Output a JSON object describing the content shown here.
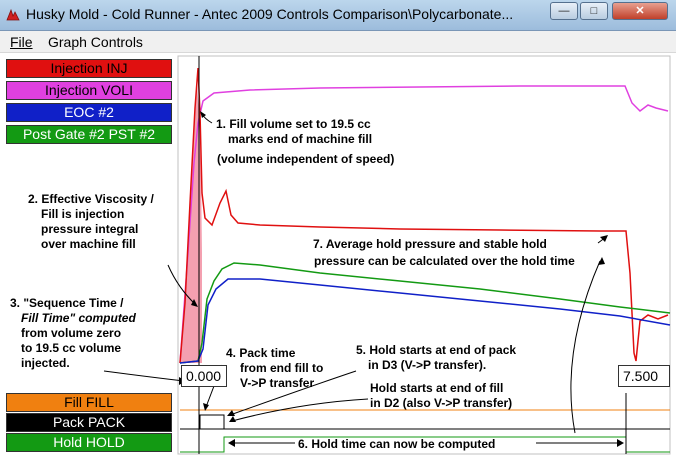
{
  "window": {
    "title": "Husky Mold - Cold Runner - Antec 2009 Controls Comparison\\Polycarbonate...",
    "minimize_glyph": "—",
    "maximize_glyph": "□",
    "close_glyph": "✕"
  },
  "menu": {
    "file": "File",
    "graph_controls": "Graph Controls"
  },
  "legend": {
    "injection_inj": "Injection INJ",
    "injection_voli": "Injection VOLI",
    "eoc2": "EOC #2",
    "post_gate": "Post Gate #2 PST #2",
    "fill": "Fill FILL",
    "pack": "Pack PACK",
    "hold": "Hold HOLD"
  },
  "colors": {
    "injection_inj": "#e01010",
    "injection_voli": "#e040e0",
    "eoc2": "#1020c8",
    "post_gate": "#139a13",
    "fill": "#f08010",
    "pack": "#000000",
    "hold": "#139a13"
  },
  "readouts": {
    "cursor_left": "0.000",
    "cursor_right": "7.500"
  },
  "annotations": {
    "n1_line1": "1. Fill volume set to 19.5 cc",
    "n1_line2": "marks end of machine fill",
    "n1_line3": "(volume independent of speed)",
    "n2_line1": "2. Effective Viscosity /",
    "n2_line2": "Fill is injection",
    "n2_line3": "pressure integral",
    "n2_line4": "over machine fill",
    "n3_line1": "3. \"Sequence Time /",
    "n3_line2": "Fill Time\" computed",
    "n3_line3": "from volume zero",
    "n3_line4": "to 19.5 cc volume",
    "n3_line5": "injected.",
    "n4_line1": "4. Pack time",
    "n4_line2": "from end fill to",
    "n4_line3": "V->P transfer",
    "n5a_line1": "5. Hold starts at end of pack",
    "n5a_line2": "in D3 (V->P transfer).",
    "n5b_line1": "Hold starts at end of fill",
    "n5b_line2": "in D2 (also V->P transfer)",
    "n6": "6. Hold time can now be computed",
    "n7_line1": "7. Average hold pressure and stable hold",
    "n7_line2": "pressure can be calculated over the hold time"
  }
}
